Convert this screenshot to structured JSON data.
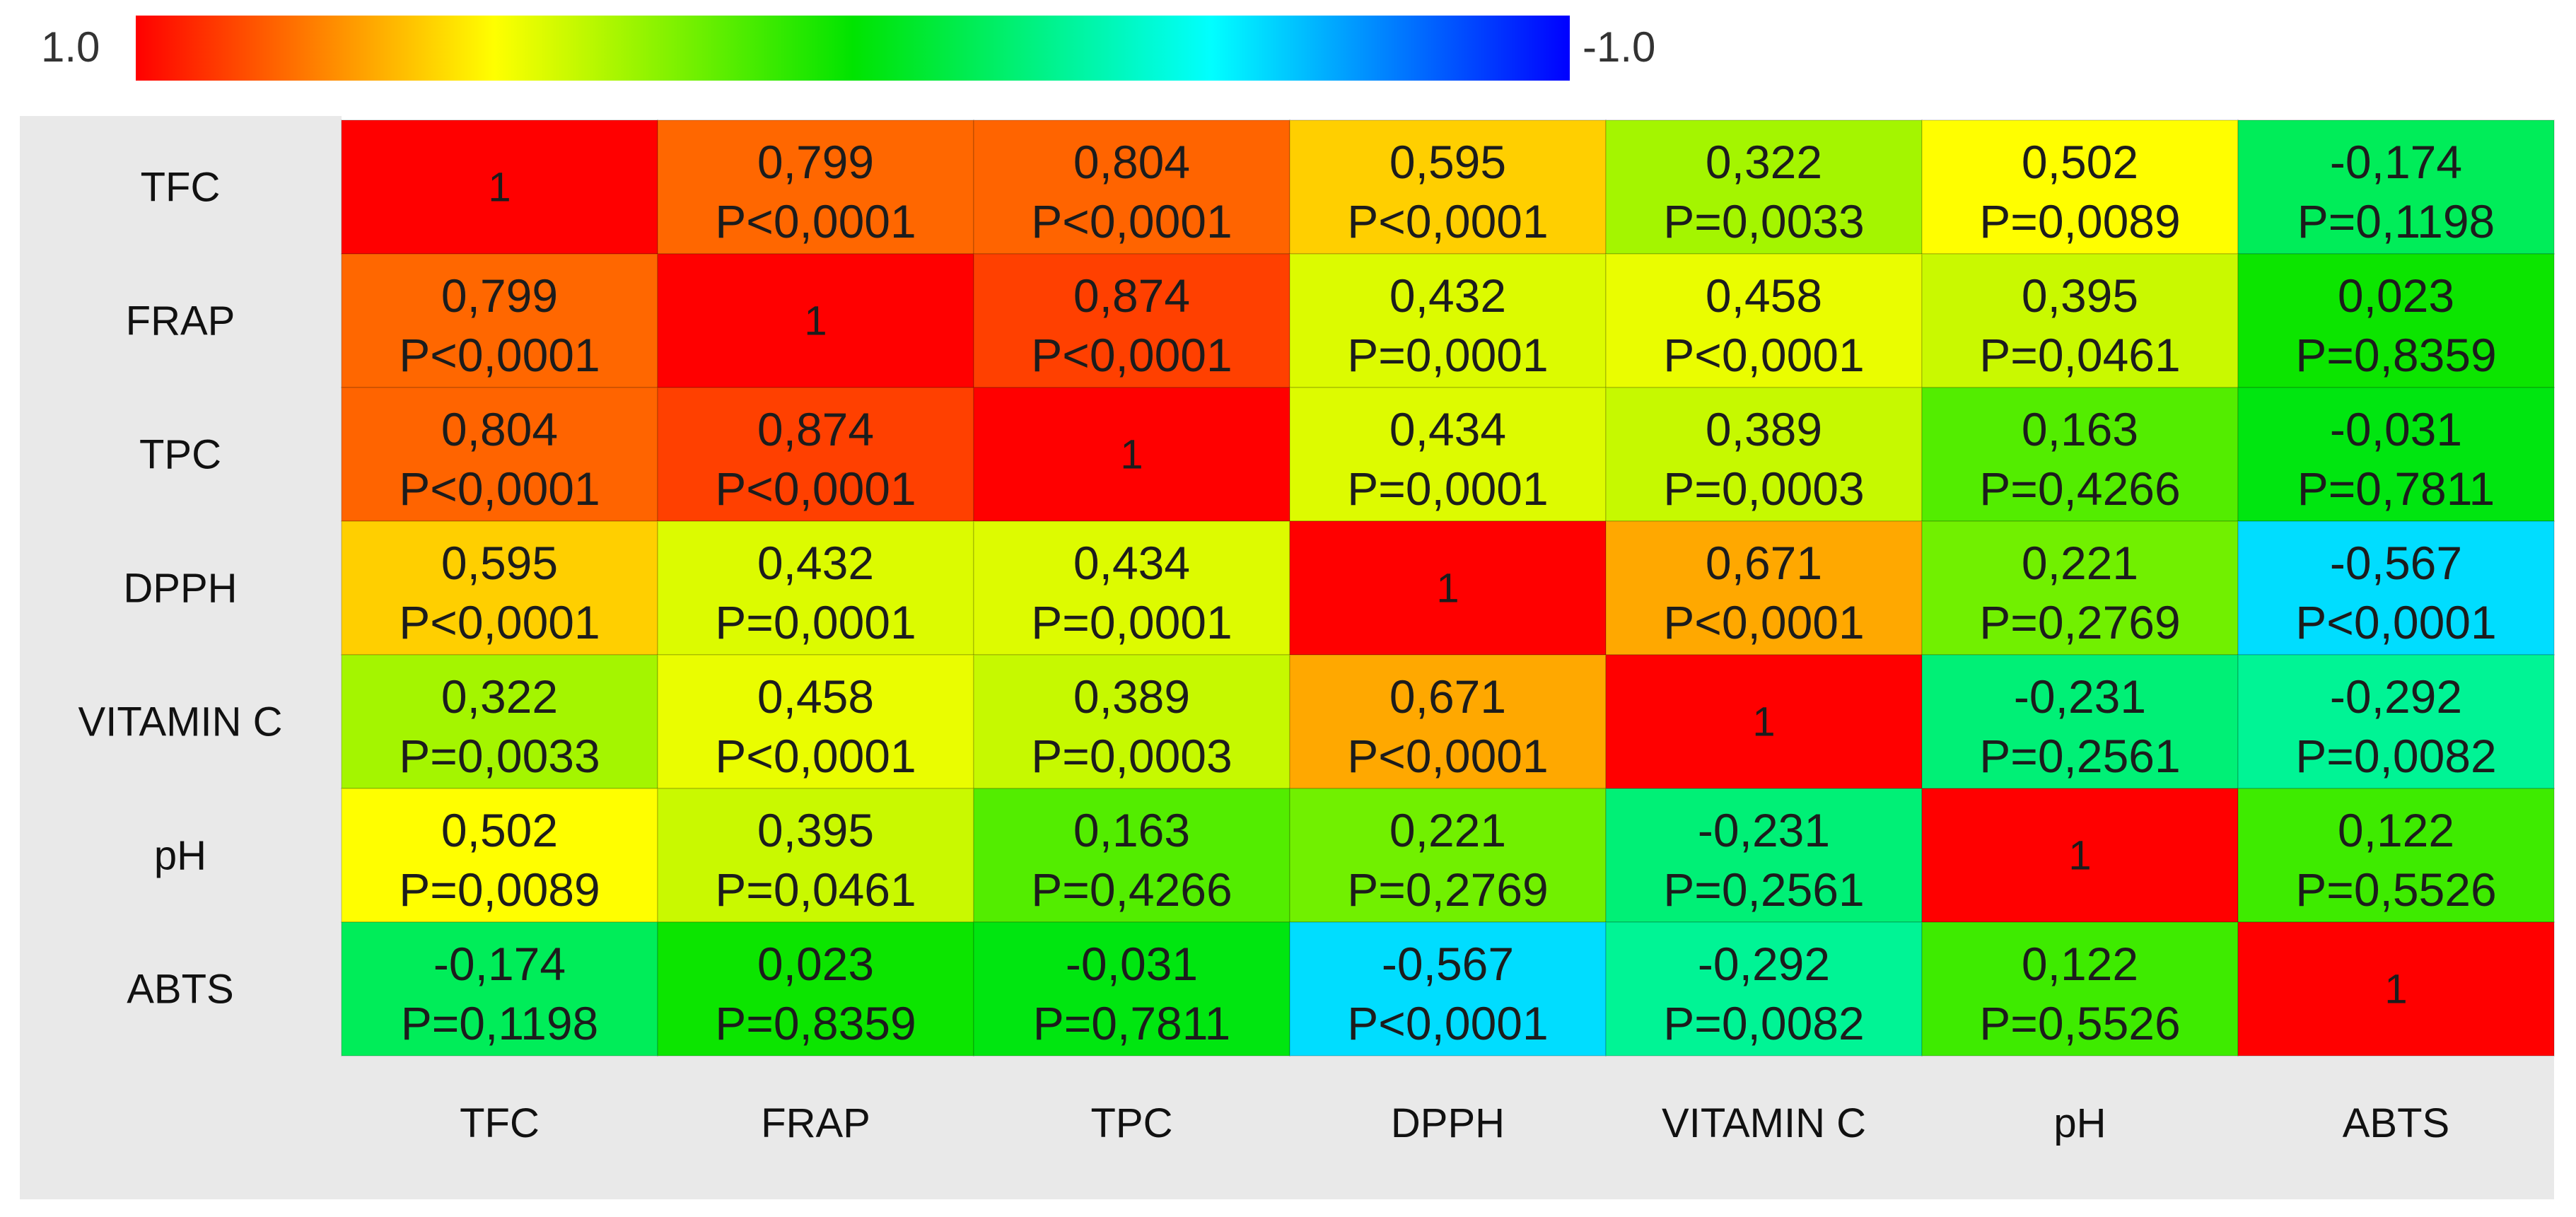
{
  "chart_data": {
    "type": "heatmap",
    "title": "",
    "legend": {
      "max_label": "1.0",
      "min_label": "-1.0",
      "placement": "top",
      "colors": [
        "#ff0000",
        "#ffff00",
        "#00e400",
        "#00ffff",
        "#0000ff"
      ]
    },
    "row_labels": [
      "TFC",
      "FRAP",
      "TPC",
      "DPPH",
      "VITAMIN C",
      "pH",
      "ABTS"
    ],
    "col_labels": [
      "TFC",
      "FRAP",
      "TPC",
      "DPPH",
      "VITAMIN C",
      "pH",
      "ABTS"
    ],
    "cells": [
      [
        {
          "r": "1",
          "p": ""
        },
        {
          "r": "0,799",
          "p": "P<0,0001"
        },
        {
          "r": "0,804",
          "p": "P<0,0001"
        },
        {
          "r": "0,595",
          "p": "P<0,0001"
        },
        {
          "r": "0,322",
          "p": "P=0,0033"
        },
        {
          "r": "0,502",
          "p": "P=0,0089"
        },
        {
          "r": "-0,174",
          "p": "P=0,1198"
        }
      ],
      [
        {
          "r": "0,799",
          "p": "P<0,0001"
        },
        {
          "r": "1",
          "p": ""
        },
        {
          "r": "0,874",
          "p": "P<0,0001"
        },
        {
          "r": "0,432",
          "p": "P=0,0001"
        },
        {
          "r": "0,458",
          "p": "P<0,0001"
        },
        {
          "r": "0,395",
          "p": "P=0,0461"
        },
        {
          "r": "0,023",
          "p": "P=0,8359"
        }
      ],
      [
        {
          "r": "0,804",
          "p": "P<0,0001"
        },
        {
          "r": "0,874",
          "p": "P<0,0001"
        },
        {
          "r": "1",
          "p": ""
        },
        {
          "r": "0,434",
          "p": "P=0,0001"
        },
        {
          "r": "0,389",
          "p": "P=0,0003"
        },
        {
          "r": "0,163",
          "p": "P=0,4266"
        },
        {
          "r": "-0,031",
          "p": "P=0,7811"
        }
      ],
      [
        {
          "r": "0,595",
          "p": "P<0,0001"
        },
        {
          "r": "0,432",
          "p": "P=0,0001"
        },
        {
          "r": "0,434",
          "p": "P=0,0001"
        },
        {
          "r": "1",
          "p": ""
        },
        {
          "r": "0,671",
          "p": "P<0,0001"
        },
        {
          "r": "0,221",
          "p": "P=0,2769"
        },
        {
          "r": "-0,567",
          "p": "P<0,0001"
        }
      ],
      [
        {
          "r": "0,322",
          "p": "P=0,0033"
        },
        {
          "r": "0,458",
          "p": "P<0,0001"
        },
        {
          "r": "0,389",
          "p": "P=0,0003"
        },
        {
          "r": "0,671",
          "p": "P<0,0001"
        },
        {
          "r": "1",
          "p": ""
        },
        {
          "r": "-0,231",
          "p": "P=0,2561"
        },
        {
          "r": "-0,292",
          "p": "P=0,0082"
        }
      ],
      [
        {
          "r": "0,502",
          "p": "P=0,0089"
        },
        {
          "r": "0,395",
          "p": "P=0,0461"
        },
        {
          "r": "0,163",
          "p": "P=0,4266"
        },
        {
          "r": "0,221",
          "p": "P=0,2769"
        },
        {
          "r": "-0,231",
          "p": "P=0,2561"
        },
        {
          "r": "1",
          "p": ""
        },
        {
          "r": "0,122",
          "p": "P=0,5526"
        }
      ],
      [
        {
          "r": "-0,174",
          "p": "P=0,1198"
        },
        {
          "r": "0,023",
          "p": "P=0,8359"
        },
        {
          "r": "-0,031",
          "p": "P=0,7811"
        },
        {
          "r": "-0,567",
          "p": "P<0,0001"
        },
        {
          "r": "-0,292",
          "p": "P=0,0082"
        },
        {
          "r": "0,122",
          "p": "P=0,5526"
        },
        {
          "r": "1",
          "p": ""
        }
      ]
    ]
  }
}
